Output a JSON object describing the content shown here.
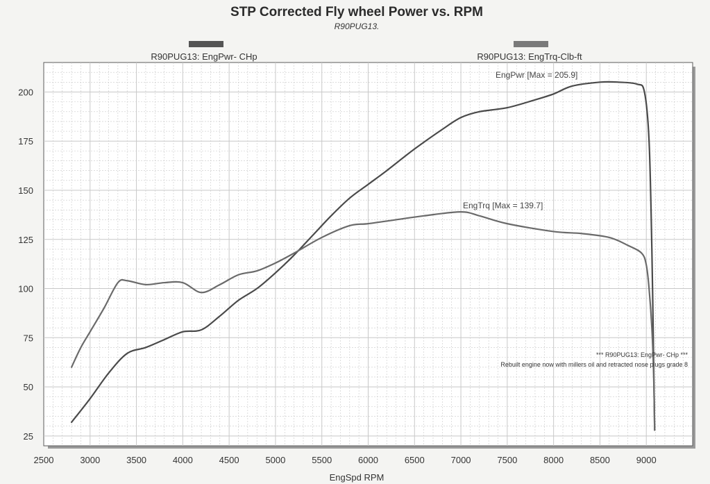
{
  "chart_data": {
    "type": "line",
    "title": "STP Corrected Fly wheel Power vs. RPM",
    "subtitle": "R90PUG13.",
    "xlabel": "EngSpd  RPM",
    "ylabel": "",
    "xlim": [
      2500,
      9500
    ],
    "ylim": [
      20,
      215
    ],
    "xticks": [
      2500,
      3000,
      3500,
      4000,
      4500,
      5000,
      5500,
      6000,
      6500,
      7000,
      7500,
      8000,
      8500,
      9000
    ],
    "yticks": [
      25,
      50,
      75,
      100,
      125,
      150,
      175,
      200
    ],
    "grid": true,
    "legend_position": "top",
    "series": [
      {
        "name": "R90PUG13: EngPwr- CHp",
        "color": "#4a4a4a",
        "x": [
          2800,
          3000,
          3200,
          3400,
          3600,
          3800,
          4000,
          4200,
          4400,
          4600,
          4800,
          5000,
          5200,
          5400,
          5600,
          5800,
          6000,
          6200,
          6500,
          6800,
          7000,
          7200,
          7500,
          7800,
          8000,
          8200,
          8500,
          8700,
          8900,
          8980,
          9030,
          9060,
          9080,
          9090
        ],
        "y": [
          32,
          44,
          57,
          67,
          70,
          74,
          78,
          79,
          86,
          94,
          100,
          108,
          117,
          127,
          137,
          146,
          153,
          160,
          171,
          181,
          187,
          190,
          192,
          196,
          199,
          203,
          205,
          205,
          204,
          200,
          175,
          120,
          60,
          28
        ]
      },
      {
        "name": "R90PUG13: EngTrq-Clb-ft",
        "color": "#6a6a6a",
        "x": [
          2800,
          2900,
          3000,
          3150,
          3300,
          3400,
          3600,
          3800,
          4000,
          4200,
          4400,
          4600,
          4800,
          5000,
          5200,
          5500,
          5800,
          6000,
          6300,
          6600,
          7000,
          7200,
          7500,
          8000,
          8300,
          8600,
          8800,
          8950,
          9000,
          9030,
          9060,
          9080,
          9090
        ],
        "y": [
          60,
          70,
          78,
          90,
          103,
          104,
          102,
          103,
          103,
          98,
          102,
          107,
          109,
          113,
          118,
          126,
          132,
          133,
          135,
          137,
          139,
          137,
          133,
          129,
          128,
          126,
          122,
          118,
          112,
          100,
          80,
          55,
          28
        ]
      }
    ],
    "annotations": [
      "EngPwr [Max = 205.9]",
      "EngTrq [Max = 139.7]",
      "*** R90PUG13: EngPwr- CHp   ***",
      "Rebuilt engine now with millers oil and retracted nose plugs grade 8"
    ]
  },
  "colors": {
    "background": "#f4f4f2",
    "plot_background": "#ffffff",
    "grid": "#c8c8c8",
    "frame": "#5a5a5a",
    "shadow": "#9a9a9a"
  }
}
